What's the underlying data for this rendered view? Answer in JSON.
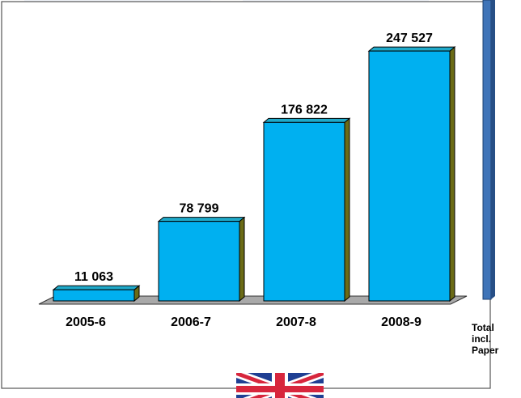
{
  "chart_data": {
    "type": "bar",
    "categories": [
      "2005-6",
      "2006-7",
      "2007-8",
      "2008-9"
    ],
    "values": [
      11063,
      78799,
      176822,
      247527
    ],
    "value_labels": [
      "11 063",
      "78 799",
      "176 822",
      "247 527"
    ],
    "ylim": [
      0,
      250000
    ],
    "grid": false,
    "title": "",
    "xlabel": "",
    "ylabel": "",
    "bar_color": "#00B0F0",
    "series": [
      {
        "values": [
          11063,
          78799,
          176822,
          247527
        ]
      }
    ],
    "side_label": [
      "Total",
      "incl.",
      "Paper"
    ]
  },
  "colors": {
    "bar_front": "#00B0F0",
    "bar_top": "#1fa9c9",
    "bar_side": "#6b6b16",
    "floor": "#a0a0a0",
    "side_bar": "#3f74b8"
  },
  "decor": {
    "flag_icon": "union-jack-flag-icon"
  }
}
